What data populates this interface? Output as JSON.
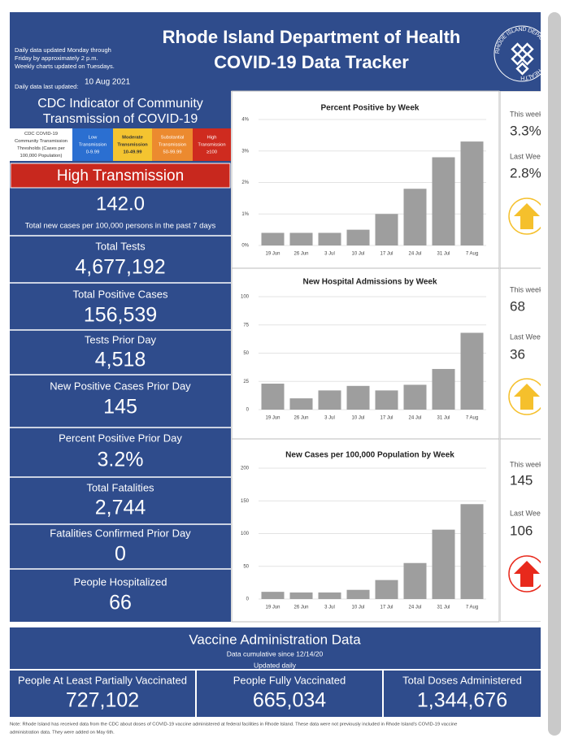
{
  "header": {
    "title_lines": [
      "Rhode Island Department of Health",
      "COVID-19 Data Tracker"
    ],
    "info": [
      "Daily data updated Monday through",
      "Friday by approximately 2 p.m.",
      "Weekly charts updated on Tuesdays."
    ],
    "updated_label": "Daily data last updated:",
    "updated_date": "10 Aug 2021",
    "logo_text": "RHODE ISLAND DEPARTMENT OF HEALTH"
  },
  "cdc": {
    "title_lines": [
      "CDC Indicator of Community",
      "Transmission of COVID-19"
    ],
    "legend": [
      {
        "lines": [
          "CDC COVID-19",
          "Community Transmission",
          "Thresholds (Cases per",
          "100,000 Population)"
        ],
        "color": "#ffffff"
      },
      {
        "lines": [
          "Low",
          "Transmission",
          "0-9.99"
        ],
        "color": "#2b6fd1"
      },
      {
        "lines": [
          "Moderate",
          "Transmission",
          "10-49.99"
        ],
        "color": "#f4c430"
      },
      {
        "lines": [
          "Substantial",
          "Transmission",
          "50-99.99"
        ],
        "color": "#ec8a2f"
      },
      {
        "lines": [
          "High",
          "Transmission",
          "≥100"
        ],
        "color": "#cf2b1f"
      }
    ],
    "level": "High Transmission",
    "level_color": "#c8281e",
    "value": "142.0",
    "value_note": "Total new cases per 100,000 persons in the past 7 days"
  },
  "stats": [
    {
      "label": "Total Tests",
      "value": "4,677,192"
    },
    {
      "label": "Total Positive Cases",
      "value": "156,539"
    },
    {
      "label": "Tests Prior Day",
      "value": "4,518"
    },
    {
      "label": "New Positive Cases Prior Day",
      "value": "145"
    },
    {
      "label": "Percent Positive Prior Day",
      "value": "3.2%"
    },
    {
      "label": "Total Fatalities",
      "value": "2,744"
    },
    {
      "label": "Fatalities Confirmed Prior Day",
      "value": "0"
    },
    {
      "label": "People Hospitalized",
      "value": "66"
    }
  ],
  "chart_data": [
    {
      "type": "bar",
      "title": "Percent Positive by Week",
      "categories": [
        "19 Jun",
        "26 Jun",
        "3 Jul",
        "10 Jul",
        "17 Jul",
        "24 Jul",
        "31 Jul",
        "7 Aug"
      ],
      "values": [
        0.4,
        0.4,
        0.4,
        0.5,
        1.0,
        1.8,
        2.8,
        3.3
      ],
      "color": "#9e9e9e",
      "ylim": [
        0,
        4
      ],
      "yticks": [
        {
          "value": 0,
          "label": "0%"
        },
        {
          "value": 1,
          "label": "1%"
        },
        {
          "value": 2,
          "label": "2%"
        },
        {
          "value": 3,
          "label": "3%"
        },
        {
          "value": 4,
          "label": "4%"
        }
      ],
      "grid": true
    },
    {
      "type": "bar",
      "title": "New Hospital Admissions by Week",
      "categories": [
        "19 Jun",
        "26 Jun",
        "3 Jul",
        "10 Jul",
        "17 Jul",
        "24 Jul",
        "31 Jul",
        "7 Aug"
      ],
      "values": [
        23,
        10,
        17,
        21,
        17,
        22,
        36,
        68
      ],
      "color": "#9e9e9e",
      "ylim": [
        0,
        100
      ],
      "yticks": [
        0,
        25,
        50,
        75,
        100
      ],
      "grid": true
    },
    {
      "type": "bar",
      "title": "New Cases per 100,000 Population by Week",
      "categories": [
        "19 Jun",
        "26 Jun",
        "3 Jul",
        "10 Jul",
        "17 Jul",
        "24 Jul",
        "31 Jul",
        "7 Aug"
      ],
      "values": [
        11,
        10,
        10,
        14,
        29,
        55,
        106,
        145
      ],
      "color": "#9e9e9e",
      "ylim": [
        0,
        200
      ],
      "yticks": [
        0,
        50,
        100,
        150,
        200
      ],
      "grid": true
    }
  ],
  "side": [
    {
      "this_label": "This week",
      "this_value": "3.3%",
      "last_label": "Last Week",
      "last_value": "2.8%",
      "arrow_color": "#f5c02c"
    },
    {
      "this_label": "This week",
      "this_value": "68",
      "last_label": "Last Week",
      "last_value": "36",
      "arrow_color": "#f5c02c"
    },
    {
      "this_label": "This week",
      "this_value": "145",
      "last_label": "Last Week",
      "last_value": "106",
      "arrow_color": "#e8291c"
    }
  ],
  "vaccine": {
    "title": "Vaccine Administration Data",
    "subtitle": "Data cumulative since 12/14/20",
    "updated": "Updated daily",
    "items": [
      {
        "label": "People At Least Partially Vaccinated",
        "value": "727,102"
      },
      {
        "label": "People Fully Vaccinated",
        "value": "665,034"
      },
      {
        "label": "Total Doses Administered",
        "value": "1,344,676"
      }
    ]
  },
  "note": [
    "Note: Rhode Island has received data from the CDC about doses of COVID-19 vaccine administered at federal facilities in Rhode Island. These data were not previously included in Rhode Island's COVID-19 vaccine",
    "administration data. They were added on May 6th."
  ]
}
